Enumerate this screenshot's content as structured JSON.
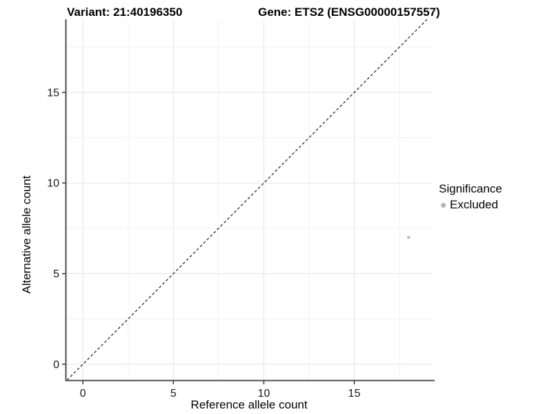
{
  "figure": {
    "title_left": "Variant: 21:40196350",
    "title_right": "Gene: ETS2 (ENSG00000157557)"
  },
  "legend": {
    "title": "Significance",
    "entries": [
      {
        "label": "Excluded",
        "color": "#b5b5b5"
      }
    ]
  },
  "chart_data": {
    "type": "scatter",
    "title": "Variant: 21:40196350  |  Gene: ETS2 (ENSG00000157557)",
    "xlabel": "Reference allele count",
    "ylabel": "Alternative allele count",
    "xlim": [
      -0.92,
      19.33
    ],
    "ylim": [
      -0.88,
      19.03
    ],
    "x_ticks": [
      0,
      5,
      10,
      15
    ],
    "y_ticks": [
      0,
      5,
      10,
      15
    ],
    "x_minor_ticks": [
      2.5,
      7.5,
      12.5,
      17.5
    ],
    "y_minor_ticks": [
      2.5,
      7.5,
      12.5,
      17.5
    ],
    "grid": "on",
    "legend_position": "right",
    "reference_line": {
      "kind": "identity",
      "slope": 1,
      "intercept": 0,
      "style": "dashed"
    },
    "series": [
      {
        "name": "Excluded",
        "points": [
          {
            "x": 18,
            "y": 7
          }
        ],
        "color": "#bdbdbd",
        "point_radius": 2.3
      }
    ],
    "colors": {
      "background": "#ffffff",
      "grid_major": "#e4e4e4",
      "grid_minor": "#f1f1f1",
      "axis_line": "#4d4d4d",
      "tick_mark": "#333333",
      "tick_label": "#1a1a1a",
      "dashed_line": "#1a1a1a",
      "point": "#bdbdbd",
      "legend_dot": "#b5b5b5"
    }
  }
}
